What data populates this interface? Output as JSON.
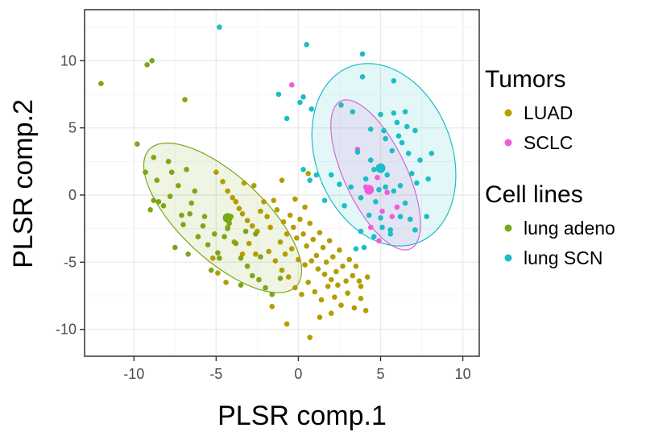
{
  "chart_data": {
    "type": "scatter",
    "xlabel": "PLSR comp.1",
    "ylabel": "PLSR comp.2",
    "xlim": [
      -13,
      11
    ],
    "ylim": [
      -12,
      13.8
    ],
    "xticks": [
      -10,
      -5,
      0,
      5,
      10
    ],
    "yticks": [
      -10,
      -5,
      0,
      5,
      10
    ],
    "grid": true,
    "legend_position": "right",
    "legend": [
      {
        "title": "Tumors",
        "entries": [
          {
            "label": "LUAD",
            "color": "#b39d00"
          },
          {
            "label": "SCLC",
            "color": "#f05bd8"
          }
        ]
      },
      {
        "title": "Cell lines",
        "entries": [
          {
            "label": "lung adeno",
            "color": "#79a817"
          },
          {
            "label": "lung SCN",
            "color": "#1cbdc6"
          }
        ]
      }
    ],
    "series": [
      {
        "name": "LUAD",
        "color": "#b39d00",
        "points": [
          [
            -5,
            1.7
          ],
          [
            -4.6,
            1
          ],
          [
            -4.3,
            0.3
          ],
          [
            -4,
            -0.2
          ],
          [
            -3.8,
            -0.5
          ],
          [
            -3.6,
            -1
          ],
          [
            -3.4,
            -1.4
          ],
          [
            -3.1,
            -1.9
          ],
          [
            -2.8,
            -2.3
          ],
          [
            -2.5,
            -2.7
          ],
          [
            -2.3,
            -1.2
          ],
          [
            -2.1,
            -0.5
          ],
          [
            -1.9,
            -1.6
          ],
          [
            -1.7,
            -2.4
          ],
          [
            -1.5,
            -0.4
          ],
          [
            -1.3,
            -1.1
          ],
          [
            -1.1,
            -3.5
          ],
          [
            -0.9,
            -2
          ],
          [
            -0.7,
            -2.9
          ],
          [
            -0.5,
            -1.5
          ],
          [
            -0.3,
            -2.4
          ],
          [
            -0.1,
            -3.2
          ],
          [
            0.1,
            -1.8
          ],
          [
            0.3,
            -2.9
          ],
          [
            0.5,
            -3.8
          ],
          [
            0.7,
            -2.1
          ],
          [
            0.9,
            -3.3
          ],
          [
            1.1,
            -4.5
          ],
          [
            1.3,
            -2.8
          ],
          [
            1.5,
            -3.9
          ],
          [
            1.7,
            -5
          ],
          [
            1.9,
            -3.4
          ],
          [
            2.1,
            -4.6
          ],
          [
            2.3,
            -5.7
          ],
          [
            2.5,
            -4.1
          ],
          [
            2.7,
            -5.3
          ],
          [
            2.9,
            -6.4
          ],
          [
            3.1,
            -4.8
          ],
          [
            3.3,
            -6
          ],
          [
            3.5,
            -5.3
          ],
          [
            3.7,
            -6.4
          ],
          [
            -1.8,
            -4.2
          ],
          [
            -1.4,
            -4.9
          ],
          [
            -1,
            -5.6
          ],
          [
            -0.6,
            -6.1
          ],
          [
            -0.2,
            -6.9
          ],
          [
            0.2,
            -7.4
          ],
          [
            0.6,
            -6.5
          ],
          [
            1,
            -7.2
          ],
          [
            1.4,
            -7.8
          ],
          [
            1.8,
            -6.8
          ],
          [
            2.2,
            -7.6
          ],
          [
            2.6,
            -8.2
          ],
          [
            3,
            -7.3
          ],
          [
            3.4,
            -8.4
          ],
          [
            3.8,
            -7.7
          ],
          [
            4.1,
            -8.6
          ],
          [
            -2.6,
            -4.4
          ],
          [
            -3,
            -3.6
          ],
          [
            -3.4,
            -4.4
          ],
          [
            -3.9,
            -3.5
          ],
          [
            -4.3,
            -2.4
          ],
          [
            -0.8,
            -4.4
          ],
          [
            -0.4,
            -4
          ],
          [
            0,
            -4.8
          ],
          [
            0.4,
            -5.2
          ],
          [
            0.8,
            -4.9
          ],
          [
            1.2,
            -5.5
          ],
          [
            1.6,
            -5.9
          ],
          [
            2,
            -6.3
          ],
          [
            2.4,
            -6.7
          ],
          [
            -0.2,
            -0.3
          ],
          [
            0.4,
            -0.9
          ],
          [
            -2.7,
            0.7
          ],
          [
            -3.3,
            0.9
          ],
          [
            -1,
            1.1
          ],
          [
            0.6,
            1.6
          ],
          [
            -1.6,
            -8.3
          ],
          [
            -0.7,
            -9.6
          ],
          [
            0.7,
            -10.6
          ],
          [
            1.3,
            -9.1
          ],
          [
            -5.2,
            -4.7
          ],
          [
            -4.9,
            -5.8
          ],
          [
            -4.4,
            -6.5
          ],
          [
            2,
            -8.8
          ],
          [
            3.8,
            -6.8
          ],
          [
            4.2,
            -6.1
          ]
        ]
      },
      {
        "name": "SCLC",
        "color": "#f05bd8",
        "points": [
          [
            -0.4,
            8.2
          ],
          [
            4.3,
            0.4
          ],
          [
            3.6,
            3.4
          ],
          [
            4.8,
            1.3
          ],
          [
            5.4,
            0.2
          ],
          [
            6,
            -0.9
          ],
          [
            5.1,
            -1.2
          ],
          [
            4.4,
            -2.4
          ],
          [
            4.9,
            -3.4
          ],
          [
            5.7,
            -1.6
          ],
          [
            4.1,
            0.6
          ]
        ]
      },
      {
        "name": "lung adeno",
        "color": "#79a817",
        "points": [
          [
            -12,
            8.3
          ],
          [
            -9.2,
            9.7
          ],
          [
            -8.9,
            10
          ],
          [
            -6.9,
            7.1
          ],
          [
            -9.8,
            3.8
          ],
          [
            -8.8,
            -0.4
          ],
          [
            -9.3,
            1.7
          ],
          [
            -9,
            -1.1
          ],
          [
            -8.6,
            1.1
          ],
          [
            -8.2,
            -0.8
          ],
          [
            -7.8,
            -0.1
          ],
          [
            -7.7,
            1.7
          ],
          [
            -7.3,
            0.7
          ],
          [
            -7,
            -2.2
          ],
          [
            -6.6,
            -1.4
          ],
          [
            -6.3,
            0.3
          ],
          [
            -6.1,
            -3.1
          ],
          [
            -5.8,
            -2.3
          ],
          [
            -5.5,
            -3.7
          ],
          [
            -5.1,
            -2.9
          ],
          [
            -4.9,
            -4.3
          ],
          [
            -4.5,
            -3.1
          ],
          [
            -4.3,
            -2.5
          ],
          [
            -4.1,
            -1.6
          ],
          [
            -3.8,
            -3.6
          ],
          [
            -3.5,
            -4.7
          ],
          [
            -3.1,
            -5.3
          ],
          [
            -2.8,
            -6
          ],
          [
            -2.4,
            -6.3
          ],
          [
            -2,
            -6.9
          ],
          [
            -1.6,
            -7.4
          ],
          [
            -6.8,
            1.9
          ],
          [
            -7.9,
            2.5
          ],
          [
            -6.5,
            -0.6
          ],
          [
            -5.7,
            -1.6
          ],
          [
            -4.8,
            -4.7
          ],
          [
            -3.2,
            -2.7
          ],
          [
            -7.5,
            -3.9
          ],
          [
            -6.7,
            -4.4
          ],
          [
            -1.1,
            -6.2
          ],
          [
            -2.3,
            -4.6
          ],
          [
            -4.2,
            -2.1
          ],
          [
            -8.5,
            -0.5
          ],
          [
            -7.1,
            -1.5
          ],
          [
            -5.3,
            -5.6
          ],
          [
            -3.5,
            -6.7
          ],
          [
            -2.6,
            -2.9
          ],
          [
            -8.8,
            2.8
          ]
        ]
      },
      {
        "name": "lung SCN",
        "color": "#1cbdc6",
        "points": [
          [
            -4.8,
            12.5
          ],
          [
            0.5,
            11.2
          ],
          [
            3.9,
            10.5
          ],
          [
            5.8,
            8.5
          ],
          [
            3.9,
            8.8
          ],
          [
            -1.2,
            7.5
          ],
          [
            0.8,
            6.4
          ],
          [
            0.1,
            6.9
          ],
          [
            0.3,
            7.3
          ],
          [
            -0.7,
            5.7
          ],
          [
            2.6,
            6.7
          ],
          [
            3.3,
            6.2
          ],
          [
            5,
            6
          ],
          [
            5.8,
            6.1
          ],
          [
            6.5,
            6.2
          ],
          [
            6.6,
            5.1
          ],
          [
            7.1,
            4.8
          ],
          [
            6.1,
            4.4
          ],
          [
            5.2,
            4.8
          ],
          [
            4.4,
            4.9
          ],
          [
            3.6,
            3.2
          ],
          [
            4.4,
            2.6
          ],
          [
            5.7,
            3.3
          ],
          [
            5.3,
            4.2
          ],
          [
            5,
            2.1
          ],
          [
            6.7,
            3.1
          ],
          [
            7.4,
            2.6
          ],
          [
            8.1,
            3.1
          ],
          [
            6.9,
            1.6
          ],
          [
            6.2,
            0.7
          ],
          [
            7.2,
            0.9
          ],
          [
            7.9,
            1.2
          ],
          [
            6.5,
            -0.6
          ],
          [
            5.8,
            0.3
          ],
          [
            5.4,
            1.5
          ],
          [
            4.6,
            1.9
          ],
          [
            4.1,
            1.2
          ],
          [
            3.8,
            -0.2
          ],
          [
            3.2,
            0.6
          ],
          [
            2.8,
            -0.8
          ],
          [
            1.6,
            -0.4
          ],
          [
            0.7,
            1.1
          ],
          [
            0.3,
            1.9
          ],
          [
            1.1,
            1.5
          ],
          [
            5,
            -1.7
          ],
          [
            5.6,
            -2.6
          ],
          [
            6.2,
            -1.6
          ],
          [
            6.8,
            -1.8
          ],
          [
            7.1,
            -2.6
          ],
          [
            7.8,
            -1.6
          ],
          [
            4.3,
            -1.5
          ],
          [
            3.8,
            -2.7
          ],
          [
            4.6,
            -3.1
          ],
          [
            5.1,
            -2.4
          ],
          [
            3.5,
            -4
          ],
          [
            4,
            -3.9
          ],
          [
            5.3,
            0.6
          ],
          [
            4.7,
            -0.5
          ],
          [
            2,
            1.5
          ],
          [
            2.5,
            0.8
          ],
          [
            6,
            5.4
          ],
          [
            6.3,
            3.9
          ],
          [
            5.6,
            -2.9
          ],
          [
            4.9,
            0.4
          ]
        ]
      }
    ],
    "highlights": [
      {
        "series": "lung adeno",
        "x": -4.3,
        "y": -1.7
      },
      {
        "series": "lung SCN",
        "x": 5,
        "y": 2
      },
      {
        "series": "SCLC",
        "x": 4.3,
        "y": 0.4
      }
    ],
    "ellipses": [
      {
        "series": "lung adeno",
        "cx": -4.6,
        "cy": -1.7,
        "rx": 6.8,
        "ry": 2.8,
        "angle_deg": -51
      },
      {
        "series": "SCLC",
        "cx": 4.7,
        "cy": 1.5,
        "rx": 5.9,
        "ry": 1.95,
        "angle_deg": -70
      },
      {
        "series": "lung SCN",
        "cx": 5.2,
        "cy": 3,
        "rx": 6.9,
        "ry": 4.2,
        "angle_deg": -77
      }
    ]
  }
}
